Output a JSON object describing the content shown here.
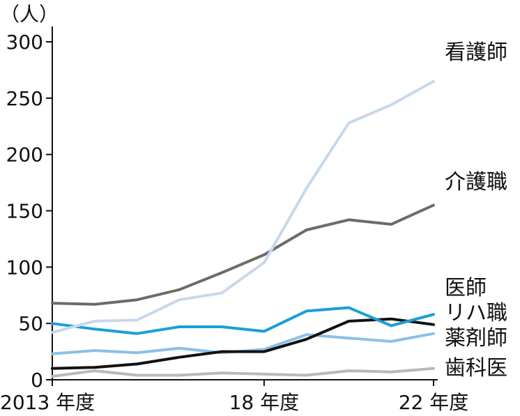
{
  "chart_data": {
    "type": "line",
    "y_unit_label": "（人）",
    "y_ticks": [
      "0",
      "50",
      "100",
      "150",
      "200",
      "250",
      "300"
    ],
    "ylim": [
      0,
      300
    ],
    "x_tick_labels": [
      {
        "year": 2013,
        "label": "2013 年度"
      },
      {
        "year": 2018,
        "label": "18 年度"
      },
      {
        "year": 2022,
        "label": "22 年度"
      }
    ],
    "grid": false,
    "x": [
      2013,
      2014,
      2015,
      2016,
      2017,
      2018,
      2019,
      2020,
      2021,
      2022
    ],
    "series": [
      {
        "name": "看護師",
        "color": "#c8d8ea",
        "values": [
          42,
          52,
          53,
          71,
          77,
          104,
          170,
          228,
          244,
          265
        ]
      },
      {
        "name": "介護職",
        "color": "#6b6b6b",
        "values": [
          68,
          67,
          71,
          80,
          95,
          111,
          133,
          142,
          138,
          155
        ]
      },
      {
        "name": "医師",
        "color": "#1a9fd6",
        "values": [
          50,
          45,
          41,
          47,
          47,
          43,
          61,
          64,
          48,
          58
        ]
      },
      {
        "name": "リハ職",
        "color": "#111111",
        "values": [
          10,
          11,
          14,
          20,
          25,
          25,
          36,
          52,
          54,
          49
        ]
      },
      {
        "name": "薬剤師",
        "color": "#8cc0e6",
        "values": [
          23,
          26,
          24,
          28,
          24,
          27,
          40,
          37,
          34,
          41
        ]
      },
      {
        "name": "歯科医",
        "color": "#b9b9b9",
        "values": [
          3,
          8,
          4,
          4,
          6,
          5,
          4,
          8,
          7,
          10
        ]
      }
    ],
    "legend_labels": [
      {
        "series": "看護師",
        "text": "看護師"
      },
      {
        "series": "介護職",
        "text": "介護職"
      },
      {
        "series": "医師",
        "text": "医師"
      },
      {
        "series": "リハ職",
        "text": "リハ職"
      },
      {
        "series": "薬剤師",
        "text": "薬剤師"
      },
      {
        "series": "歯科医",
        "text": "歯科医"
      }
    ]
  }
}
